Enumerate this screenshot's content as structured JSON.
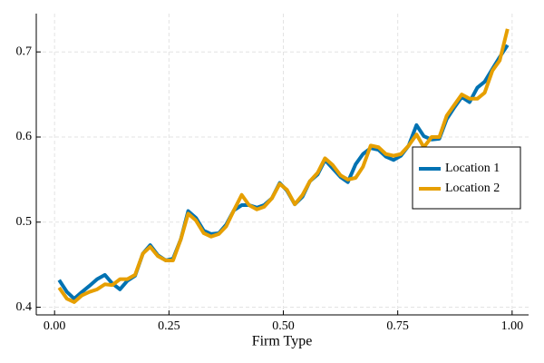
{
  "chart_data": {
    "type": "line",
    "xlabel": "Firm Type",
    "x": [
      0.01,
      0.027,
      0.043,
      0.06,
      0.076,
      0.093,
      0.11,
      0.126,
      0.143,
      0.159,
      0.176,
      0.193,
      0.209,
      0.226,
      0.243,
      0.259,
      0.276,
      0.292,
      0.309,
      0.326,
      0.342,
      0.359,
      0.375,
      0.392,
      0.409,
      0.425,
      0.442,
      0.458,
      0.475,
      0.492,
      0.508,
      0.525,
      0.542,
      0.558,
      0.575,
      0.591,
      0.608,
      0.625,
      0.641,
      0.658,
      0.674,
      0.691,
      0.708,
      0.724,
      0.741,
      0.757,
      0.774,
      0.791,
      0.807,
      0.824,
      0.841,
      0.857,
      0.874,
      0.89,
      0.907,
      0.924,
      0.94,
      0.957,
      0.973,
      0.99
    ],
    "series": [
      {
        "name": "Location 1",
        "color": "#0072b2",
        "values": [
          0.432,
          0.418,
          0.41,
          0.418,
          0.425,
          0.433,
          0.438,
          0.428,
          0.421,
          0.431,
          0.437,
          0.463,
          0.473,
          0.461,
          0.455,
          0.457,
          0.48,
          0.513,
          0.505,
          0.49,
          0.486,
          0.487,
          0.497,
          0.514,
          0.52,
          0.52,
          0.517,
          0.52,
          0.528,
          0.546,
          0.537,
          0.521,
          0.53,
          0.548,
          0.556,
          0.573,
          0.563,
          0.553,
          0.547,
          0.568,
          0.58,
          0.587,
          0.585,
          0.577,
          0.573,
          0.578,
          0.59,
          0.614,
          0.601,
          0.597,
          0.598,
          0.621,
          0.635,
          0.647,
          0.641,
          0.658,
          0.665,
          0.68,
          0.694,
          0.708
        ]
      },
      {
        "name": "Location 2",
        "color": "#e69f00",
        "values": [
          0.423,
          0.41,
          0.406,
          0.414,
          0.418,
          0.421,
          0.427,
          0.426,
          0.433,
          0.433,
          0.438,
          0.463,
          0.471,
          0.46,
          0.455,
          0.455,
          0.48,
          0.51,
          0.502,
          0.487,
          0.483,
          0.486,
          0.495,
          0.514,
          0.532,
          0.52,
          0.515,
          0.518,
          0.528,
          0.545,
          0.538,
          0.521,
          0.532,
          0.548,
          0.558,
          0.575,
          0.567,
          0.555,
          0.55,
          0.552,
          0.565,
          0.59,
          0.588,
          0.58,
          0.578,
          0.58,
          0.59,
          0.603,
          0.588,
          0.6,
          0.6,
          0.625,
          0.638,
          0.65,
          0.645,
          0.645,
          0.652,
          0.678,
          0.69,
          0.727
        ]
      }
    ],
    "xlim": [
      -0.04,
      1.036
    ],
    "ylim": [
      0.391,
      0.745
    ],
    "xticks": [
      {
        "value": 0,
        "label": "0.00"
      },
      {
        "value": 0.25,
        "label": "0.25"
      },
      {
        "value": 0.5,
        "label": "0.50"
      },
      {
        "value": 0.75,
        "label": "0.75"
      },
      {
        "value": 1,
        "label": "1.00"
      }
    ],
    "yticks": [
      0.4,
      0.5,
      0.6,
      0.7
    ],
    "grid": true,
    "legend": "right"
  }
}
